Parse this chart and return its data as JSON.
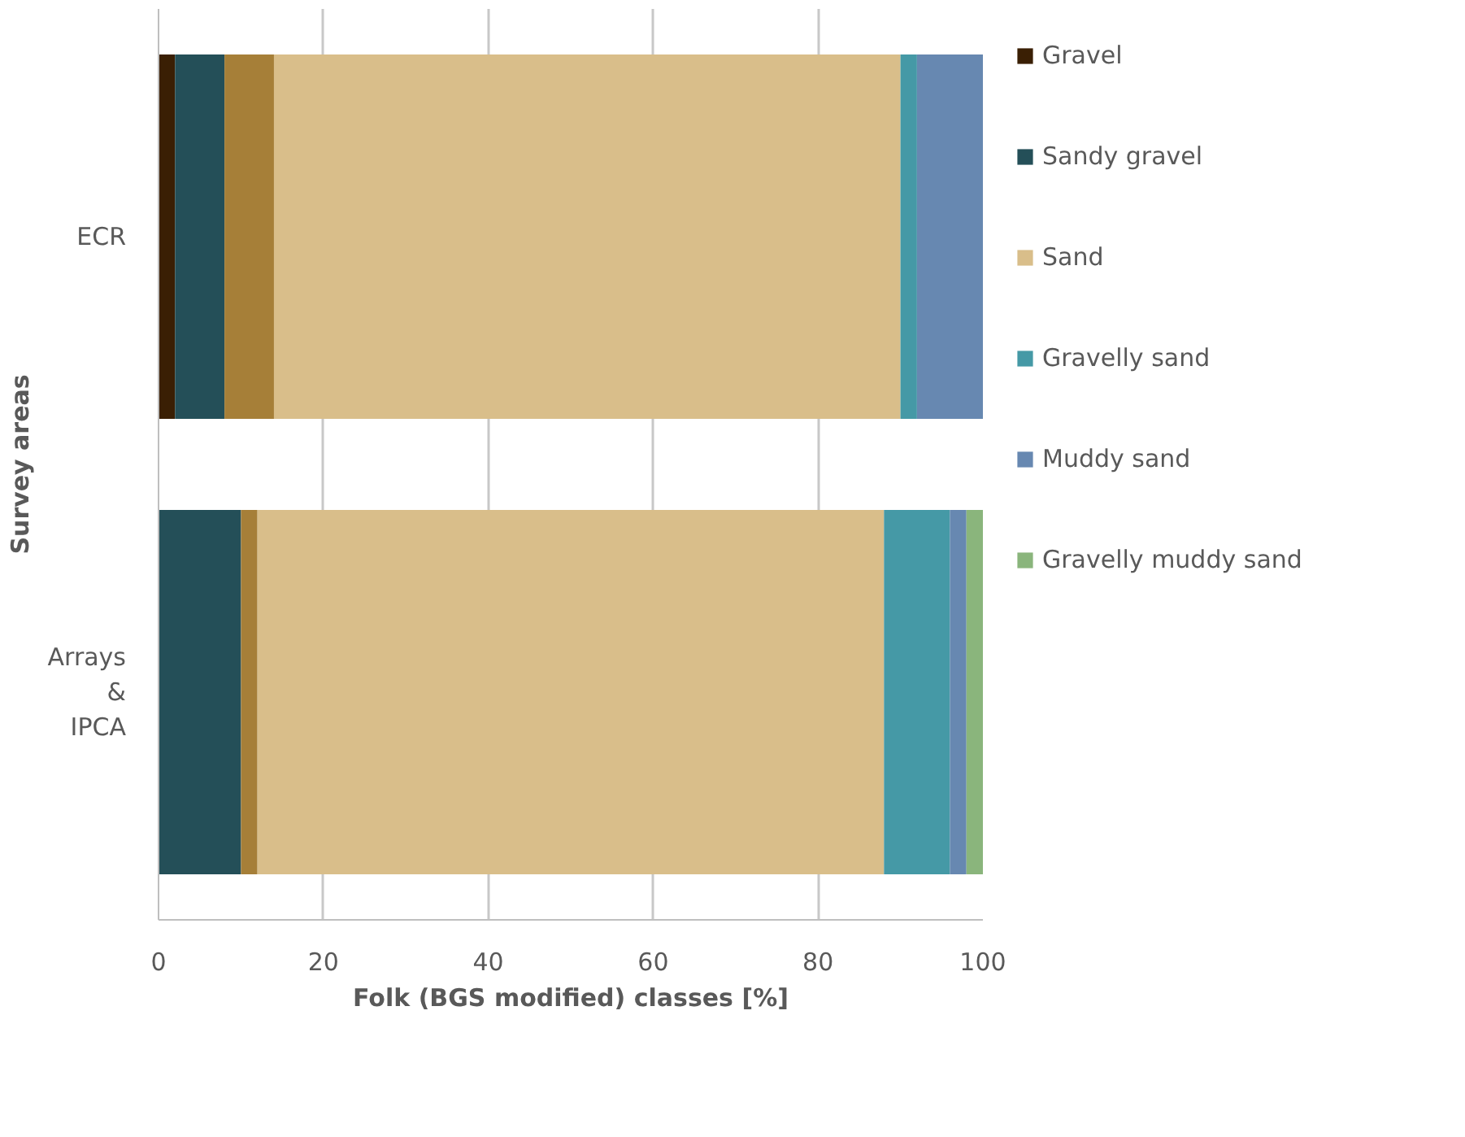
{
  "chart_data": {
    "type": "bar",
    "orientation": "horizontal",
    "stacked": true,
    "xlabel": "Folk (BGS modified) classes [%]",
    "ylabel": "Survey areas",
    "categories": [
      "ECR",
      "Arrays & IPCA"
    ],
    "series": [
      {
        "name": "Gravel",
        "color": "#3a1f04",
        "values": [
          2,
          null
        ]
      },
      {
        "name": "Sandy gravel",
        "color": "#244f58",
        "values": [
          6,
          10
        ]
      },
      {
        "color": "#a67f38",
        "values": [
          6,
          2
        ]
      },
      {
        "name": "Sand",
        "color": "#d9be8a",
        "values": [
          76,
          76
        ]
      },
      {
        "name": "Gravelly sand",
        "color": "#4599a6",
        "values": [
          2,
          8
        ]
      },
      {
        "name": "Muddy sand",
        "color": "#6788b1",
        "values": [
          8,
          2
        ]
      },
      {
        "name": "Gravelly muddy sand",
        "color": "#8ab57c",
        "values": [
          null,
          2
        ]
      }
    ],
    "xlim": [
      0,
      100
    ],
    "xticks": [
      0,
      20,
      40,
      60,
      80,
      100
    ],
    "grid": "x",
    "legend": "right"
  }
}
